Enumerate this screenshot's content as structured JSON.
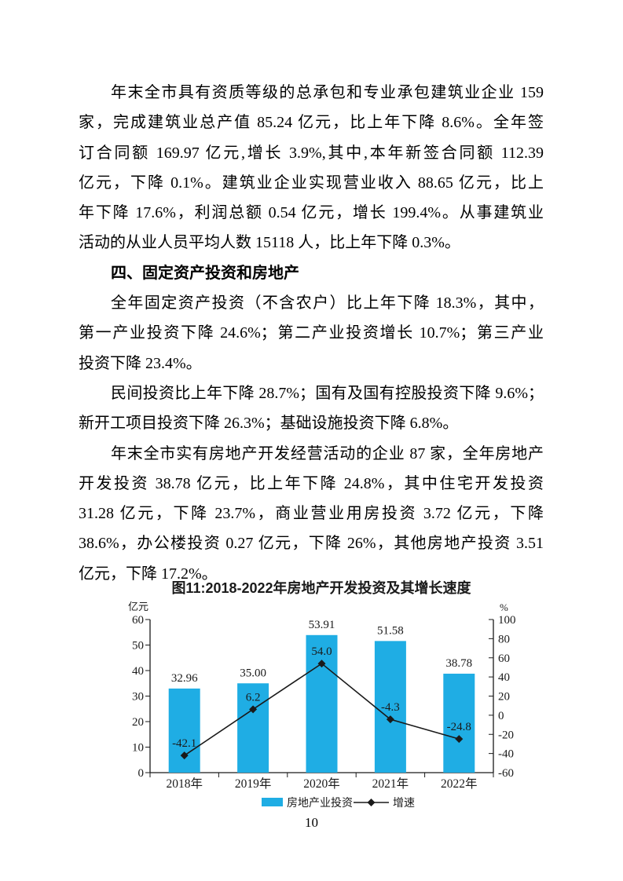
{
  "document": {
    "lines": [
      {
        "text": "年末全市具有资质等级的总承包和专业承包建筑业企业 159",
        "indent": true,
        "justify": true
      },
      {
        "text": "家，完成建筑业总产值 85.24 亿元，比上年下降 8.6%。全年签",
        "justify": true
      },
      {
        "text": "订合同额 169.97 亿元,增长 3.9%,其中,本年新签合同额 112.39",
        "justify": true
      },
      {
        "text": "亿元，下降 0.1%。建筑业企业实现营业收入 88.65 亿元，比上",
        "justify": true
      },
      {
        "text": "年下降 17.6%，利润总额 0.54 亿元，增长 199.4%。从事建筑业",
        "justify": true
      },
      {
        "text": "活动的从业人员平均人数 15118 人，比上年下降 0.3%。"
      },
      {
        "text": "四、固定资产投资和房地产",
        "indent": true,
        "heading": true
      },
      {
        "text": "全年固定资产投资（不含农户）比上年下降 18.3%，其中，",
        "indent": true,
        "justify": true
      },
      {
        "text": "第一产业投资下降 24.6%；第二产业投资增长 10.7%；第三产业",
        "justify": true
      },
      {
        "text": "投资下降 23.4%。"
      },
      {
        "text": "民间投资比上年下降 28.7%；国有及国有控股投资下降 9.6%；",
        "indent": true,
        "justify": true
      },
      {
        "text": "新开工项目投资下降 26.3%；基础设施投资下降 6.8%。"
      },
      {
        "text": "年末全市实有房地产开发经营活动的企业 87 家，全年房地产",
        "indent": true,
        "justify": true
      },
      {
        "text": "开发投资 38.78 亿元，比上年下降 24.8%，其中住宅开发投资",
        "justify": true
      },
      {
        "text": "31.28 亿元，下降 23.7%，商业营业用房投资 3.72 亿元，下降",
        "justify": true
      },
      {
        "text": "38.6%，办公楼投资 0.27 亿元，下降 26%，其他房地产投资 3.51",
        "justify": true
      },
      {
        "text": "亿元，下降 17.2%。"
      }
    ],
    "page_number": "10"
  },
  "chart_data": {
    "type": "bar",
    "title": "图11:2018-2022年房地产开发投资及其增长速度",
    "categories": [
      "2018年",
      "2019年",
      "2020年",
      "2021年",
      "2022年"
    ],
    "series": [
      {
        "name": "房地产业投资",
        "type": "bar",
        "axis": "left",
        "color": "#1fade4",
        "values": [
          32.96,
          35.0,
          53.91,
          51.58,
          38.78
        ],
        "labels": [
          "32.96",
          "35.00",
          "53.91",
          "51.58",
          "38.78"
        ]
      },
      {
        "name": "增速",
        "type": "line",
        "axis": "right",
        "color": "#1a1a1a",
        "marker": "diamond",
        "values": [
          -42.1,
          6.2,
          54.0,
          -4.3,
          -24.8
        ],
        "labels": [
          "-42.1",
          "6.2",
          "54.0",
          "-4.3",
          "-24.8"
        ]
      }
    ],
    "left_axis": {
      "unit": "亿元",
      "min": 0,
      "max": 60,
      "step": 10
    },
    "right_axis": {
      "unit": "%",
      "min": -60,
      "max": 100,
      "step": 20
    },
    "legend_position": "bottom",
    "grid": false
  }
}
